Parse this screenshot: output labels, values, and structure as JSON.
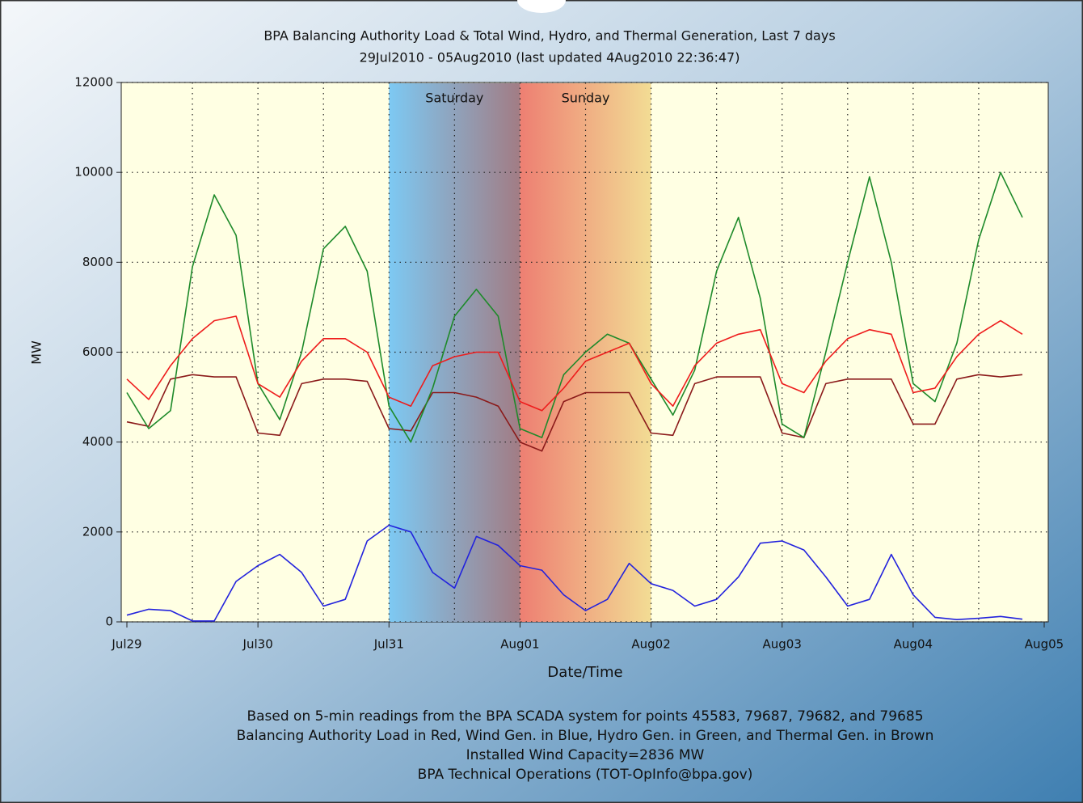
{
  "chart_data": {
    "type": "line",
    "title": "BPA Balancing Authority Load & Total Wind, Hydro, and Thermal Generation, Last 7 days",
    "subtitle": "29Jul2010 - 05Aug2010 (last updated 4Aug2010 22:36:47)",
    "ylabel": "MW",
    "xlabel": "Date/Time",
    "notes": [
      "Based on 5-min readings from the BPA SCADA system for points 45583, 79687, 79682, and 79685",
      "Balancing Authority Load in Red, Wind Gen. in Blue, Hydro Gen. in Green, and Thermal Gen. in Brown",
      "Installed Wind Capacity=2836 MW",
      "BPA Technical Operations (TOT-OpInfo@bpa.gov)"
    ],
    "xlim": [
      0,
      168
    ],
    "xticks": [
      {
        "value": 0,
        "label": "Jul29"
      },
      {
        "value": 24,
        "label": "Jul30"
      },
      {
        "value": 48,
        "label": "Jul31"
      },
      {
        "value": 72,
        "label": "Aug01"
      },
      {
        "value": 96,
        "label": "Aug02"
      },
      {
        "value": 120,
        "label": "Aug03"
      },
      {
        "value": 144,
        "label": "Aug04"
      },
      {
        "value": 168,
        "label": "Aug05"
      }
    ],
    "xgrid": [
      12,
      24,
      36,
      48,
      60,
      72,
      84,
      96,
      108,
      120,
      132,
      144,
      156
    ],
    "ylim": [
      0,
      12000
    ],
    "yticks": [
      0,
      2000,
      4000,
      6000,
      8000,
      10000,
      12000
    ],
    "grid": true,
    "bands": [
      {
        "label": "Saturday",
        "start": 48,
        "end": 72,
        "colors": [
          "#7dc9f3",
          "#a27c84"
        ]
      },
      {
        "label": "Sunday",
        "start": 72,
        "end": 96,
        "colors": [
          "#ee7f72",
          "#f2dc94"
        ]
      }
    ],
    "x": [
      0,
      4,
      8,
      12,
      16,
      20,
      24,
      28,
      32,
      36,
      40,
      44,
      48,
      52,
      56,
      60,
      64,
      68,
      72,
      76,
      80,
      84,
      88,
      92,
      96,
      100,
      104,
      108,
      112,
      116,
      120,
      124,
      128,
      132,
      136,
      140,
      144,
      148,
      152,
      156,
      160,
      164
    ],
    "series": [
      {
        "color": "#8b1a1a",
        "values": [
          4450,
          4350,
          5400,
          5500,
          5450,
          5450,
          4200,
          4150,
          5300,
          5400,
          5400,
          5350,
          4300,
          4250,
          5100,
          5100,
          5000,
          4800,
          4000,
          3800,
          4900,
          5100,
          5100,
          5100,
          4200,
          4150,
          5300,
          5450,
          5450,
          5450,
          4200,
          4100,
          5300,
          5400,
          5400,
          5400,
          4400,
          4400,
          5400,
          5500,
          5450,
          5500
        ]
      },
      {
        "color": "#1e8a2a",
        "values": [
          5100,
          4300,
          4700,
          7900,
          9500,
          8600,
          5300,
          4500,
          6000,
          8300,
          8800,
          7800,
          4800,
          4000,
          5200,
          6800,
          7400,
          6800,
          4300,
          4100,
          5500,
          6000,
          6400,
          6200,
          5400,
          4600,
          5600,
          7800,
          9000,
          7200,
          4400,
          4100,
          6000,
          8000,
          9900,
          8000,
          5300,
          4900,
          6200,
          8500,
          10000,
          9000
        ]
      },
      {
        "color": "#ee1c1c",
        "values": [
          5400,
          4950,
          5700,
          6300,
          6700,
          6800,
          5300,
          5000,
          5800,
          6300,
          6300,
          6000,
          5000,
          4800,
          5700,
          5900,
          6000,
          6000,
          4900,
          4700,
          5200,
          5800,
          6000,
          6200,
          5300,
          4800,
          5700,
          6200,
          6400,
          6500,
          5300,
          5100,
          5800,
          6300,
          6500,
          6400,
          5100,
          5200,
          5900,
          6400,
          6700,
          6400
        ]
      },
      {
        "color": "#2222dd",
        "values": [
          150,
          280,
          250,
          20,
          20,
          900,
          1250,
          1500,
          1100,
          350,
          500,
          1800,
          2150,
          2000,
          1100,
          750,
          1900,
          1700,
          1250,
          1150,
          600,
          250,
          500,
          1300,
          850,
          700,
          350,
          500,
          1000,
          1750,
          1800,
          1600,
          1000,
          350,
          500,
          1500,
          600,
          100,
          50,
          80,
          120,
          60
        ]
      }
    ]
  }
}
